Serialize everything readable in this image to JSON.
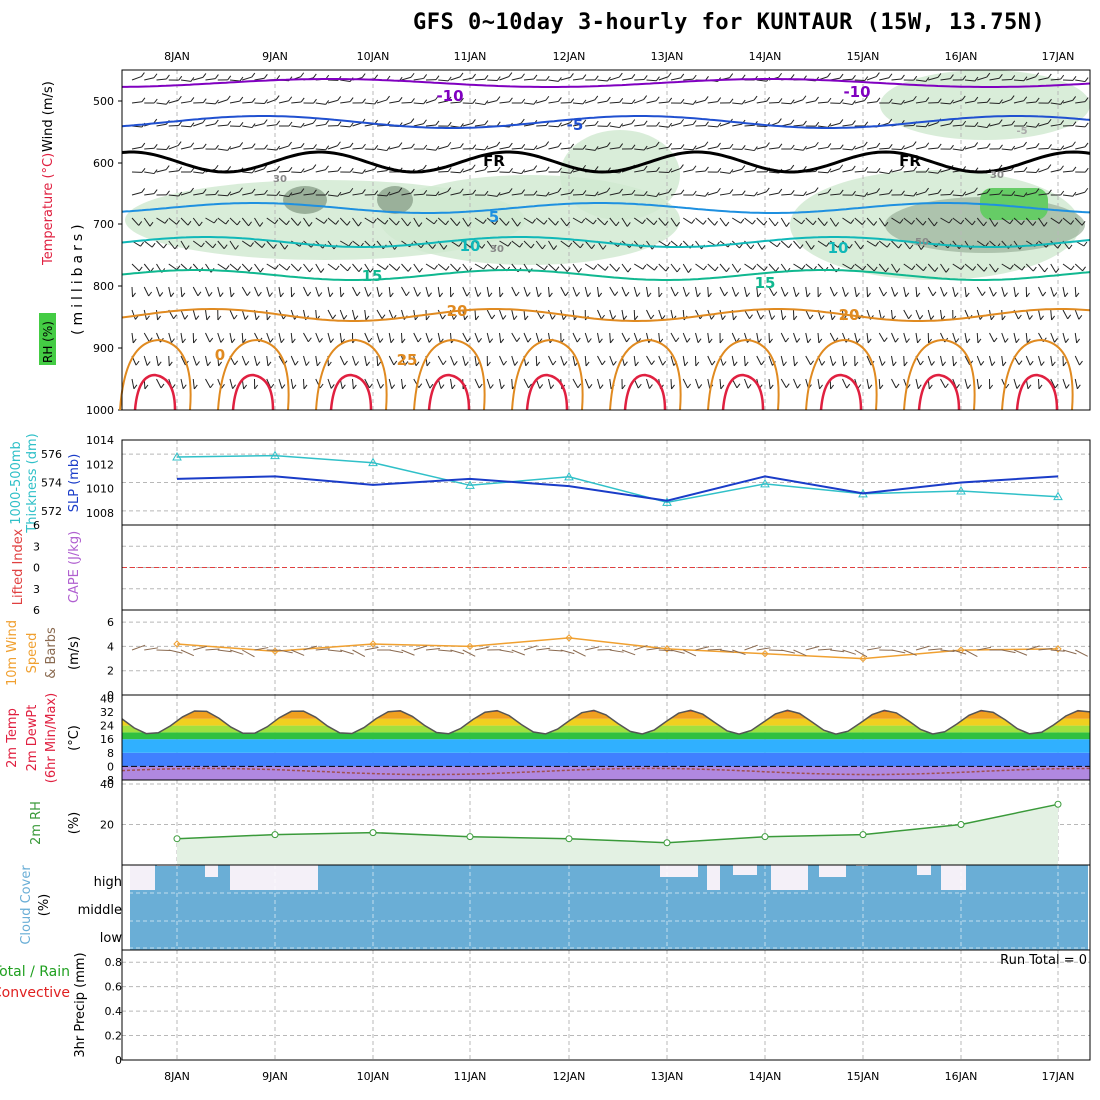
{
  "title": "GFS 0~10day 3-hourly for KUNTAUR (15W, 13.75N)",
  "dates": [
    "8JAN",
    "9JAN",
    "10JAN",
    "11JAN",
    "12JAN",
    "13JAN",
    "14JAN",
    "15JAN",
    "16JAN",
    "17JAN"
  ],
  "colors": {
    "grid": "#b8b8b8",
    "purple": "#8000c0",
    "blue": "#2050d0",
    "lightblue": "#1e90e0",
    "teal": "#10b8b8",
    "green_teal": "#10b890",
    "orange": "#e08a20",
    "red": "#e02040",
    "freezing": "#000000",
    "rh_fill": "#cfe8cf",
    "slp": "#1a3cc8",
    "thickness": "#30c0c8",
    "wind": "#f0a030",
    "rh2m": "#3a9a3a",
    "cloud": "#6aaed6",
    "precip_total": "#20a020",
    "precip_conv": "#e02020"
  },
  "panels": {
    "upper": {
      "axis_label_wind": "Wind (m/s)",
      "axis_label_temp": "Temperature (°C)",
      "axis_label_rh": "RH (%)",
      "axis_label_mb": "(millibars)",
      "levels": [
        "500",
        "600",
        "700",
        "800",
        "900",
        "1000"
      ],
      "contour_labels": [
        "-10",
        "-10",
        "-5",
        "FR",
        "FR",
        "-5",
        "5",
        "10",
        "10",
        "15",
        "15",
        "20",
        "20",
        "25",
        "0",
        "30",
        "30",
        "30",
        "50"
      ]
    },
    "thickness": {
      "label1": "1000-500mb",
      "label2": "Thickness (dm)",
      "label3": "SLP (mb)",
      "left_ticks": [
        "576",
        "574",
        "572"
      ],
      "right_ticks": [
        "1014",
        "1012",
        "1010",
        "1008"
      ]
    },
    "lifted": {
      "label1": "Lifted Index",
      "label2": "CAPE (J/kg)",
      "ticks": [
        "6",
        "3",
        "0",
        "3",
        "6"
      ]
    },
    "wind10": {
      "label1": "10m Wind",
      "label2": "Speed",
      "label3": "& Barbs",
      "label4": "(m/s)",
      "ticks": [
        "6",
        "4",
        "2",
        "0"
      ]
    },
    "temp2m": {
      "label1": "2m Temp",
      "label2": "2m DewPt",
      "label3": "(6hr Min/Max)",
      "label4": "(°C)",
      "ticks": [
        "40",
        "32",
        "24",
        "16",
        "8",
        "0",
        "-8"
      ]
    },
    "rh2m": {
      "label1": "2m RH",
      "label2": "(%)",
      "ticks": [
        "40",
        "20"
      ]
    },
    "cloud": {
      "label1": "Cloud Cover",
      "label2": "(%)",
      "rows": [
        "high",
        "middle",
        "low"
      ]
    },
    "precip": {
      "label1": "Total / Rain",
      "label2": "Convective",
      "label3": "3hr Precip (mm)",
      "run_total": "Run Total = 0",
      "ticks": [
        "0.8",
        "0.6",
        "0.4",
        "0.2",
        "0"
      ]
    }
  },
  "chart_data": [
    {
      "type": "line",
      "title": "1000-500mb Thickness (dm) / SLP (mb)",
      "x": [
        "8JAN",
        "9JAN",
        "10JAN",
        "11JAN",
        "12JAN",
        "13JAN",
        "14JAN",
        "15JAN",
        "16JAN",
        "17JAN"
      ],
      "series": [
        {
          "name": "1000-500mb Thickness (dm)",
          "values": [
            575.8,
            575.9,
            575.4,
            573.8,
            574.4,
            572.6,
            573.9,
            573.2,
            573.4,
            573.0
          ]
        },
        {
          "name": "SLP (mb)",
          "values": [
            1010.8,
            1011.0,
            1010.3,
            1010.8,
            1010.2,
            1009.0,
            1011.0,
            1009.6,
            1010.5,
            1011.0
          ]
        }
      ],
      "ylim_left": [
        571,
        577
      ],
      "ylim_right": [
        1007,
        1014
      ]
    },
    {
      "type": "line",
      "title": "10m Wind Speed (m/s)",
      "x": [
        "8JAN",
        "9JAN",
        "10JAN",
        "11JAN",
        "12JAN",
        "13JAN",
        "14JAN",
        "15JAN",
        "16JAN",
        "17JAN"
      ],
      "series": [
        {
          "name": "10m Wind Speed",
          "values": [
            4.2,
            3.6,
            4.2,
            4.0,
            4.7,
            3.8,
            3.4,
            3.0,
            3.7,
            3.8
          ]
        }
      ],
      "ylim": [
        0,
        7
      ]
    },
    {
      "type": "area",
      "title": "2m Temp (°C)",
      "x": [
        "8JAN",
        "9JAN",
        "10JAN",
        "11JAN",
        "12JAN",
        "13JAN",
        "14JAN",
        "15JAN",
        "16JAN",
        "17JAN"
      ],
      "series": [
        {
          "name": "2m Temp",
          "values": [
            27,
            30,
            28,
            30,
            30,
            30,
            30,
            30,
            30,
            28
          ]
        },
        {
          "name": "2m DewPt",
          "values": [
            -4,
            -3,
            -2,
            -3,
            -3,
            -2,
            -3,
            -3,
            -2,
            -1
          ]
        }
      ],
      "ylim": [
        -8,
        42
      ]
    },
    {
      "type": "area",
      "title": "2m RH (%)",
      "x": [
        "8JAN",
        "9JAN",
        "10JAN",
        "11JAN",
        "12JAN",
        "13JAN",
        "14JAN",
        "15JAN",
        "16JAN",
        "17JAN"
      ],
      "series": [
        {
          "name": "2m RH",
          "values": [
            13,
            15,
            16,
            14,
            13,
            11,
            14,
            15,
            20,
            30
          ]
        }
      ],
      "ylim": [
        0,
        42
      ]
    },
    {
      "type": "bar",
      "title": "3hr Precip (mm)",
      "x": [
        "8JAN",
        "9JAN",
        "10JAN",
        "11JAN",
        "12JAN",
        "13JAN",
        "14JAN",
        "15JAN",
        "16JAN",
        "17JAN"
      ],
      "series": [
        {
          "name": "Total / Rain",
          "values": [
            0,
            0,
            0,
            0,
            0,
            0,
            0,
            0,
            0,
            0
          ]
        },
        {
          "name": "Convective",
          "values": [
            0,
            0,
            0,
            0,
            0,
            0,
            0,
            0,
            0,
            0
          ]
        }
      ],
      "ylim": [
        0,
        0.9
      ]
    }
  ]
}
